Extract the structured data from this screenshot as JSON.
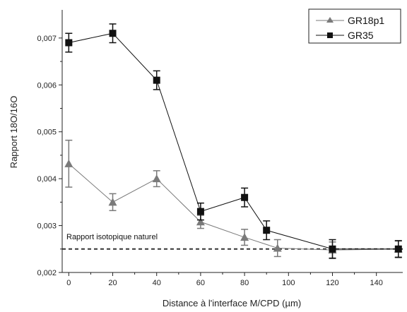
{
  "chart_data": {
    "type": "line",
    "xlabel": "Distance à l'interface M/CPD (µm)",
    "ylabel": "Rapport 18O/16O",
    "xlim": [
      -3,
      152
    ],
    "ylim": [
      0.002,
      0.0076
    ],
    "xticks": [
      0,
      20,
      40,
      60,
      80,
      100,
      120,
      140
    ],
    "xtick_labels": [
      "0",
      "20",
      "40",
      "60",
      "80",
      "100",
      "120",
      "140"
    ],
    "yticks": [
      0.002,
      0.003,
      0.004,
      0.005,
      0.006,
      0.007
    ],
    "ytick_labels": [
      "0,002",
      "0,003",
      "0,004",
      "0,005",
      "0,006",
      "0,007"
    ],
    "legend_position": "top-right",
    "grid": false,
    "series": [
      {
        "name": "GR18p1",
        "marker": "triangle",
        "color": "#7a7a7a",
        "x": [
          0,
          20,
          40,
          60,
          80,
          95,
          120,
          150
        ],
        "y": [
          0.00432,
          0.0035,
          0.004,
          0.00308,
          0.00275,
          0.00252,
          0.00248,
          0.0025
        ],
        "err": [
          0.0005,
          0.00018,
          0.00017,
          0.00014,
          0.00017,
          0.00018,
          0.00017,
          0.00017
        ]
      },
      {
        "name": "GR35",
        "marker": "square",
        "color": "#111111",
        "x": [
          0,
          20,
          40,
          60,
          80,
          90,
          120,
          150
        ],
        "y": [
          0.0069,
          0.0071,
          0.0061,
          0.0033,
          0.0036,
          0.0029,
          0.0025,
          0.0025
        ],
        "err": [
          0.0002,
          0.0002,
          0.0002,
          0.00018,
          0.0002,
          0.0002,
          0.0002,
          0.00018
        ]
      }
    ],
    "reference_line": {
      "y": 0.0025,
      "label": "Rapport isotopique naturel",
      "style": "dashed",
      "color": "#333333"
    }
  }
}
